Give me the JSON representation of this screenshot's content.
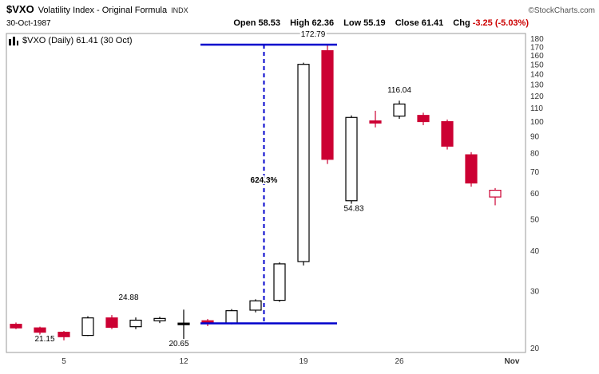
{
  "header": {
    "symbol": "$VXO",
    "title": "Volatility Index - Original Formula",
    "exchange": "INDX",
    "copyright": "©StockCharts.com",
    "date": "30-Oct-1987",
    "quote": {
      "open_label": "Open",
      "open_value": "58.53",
      "high_label": "High",
      "high_value": "62.36",
      "low_label": "Low",
      "low_value": "55.19",
      "close_label": "Close",
      "close_value": "61.41",
      "chg_label": "Chg",
      "chg_value": "-3.25 (-5.03%)"
    }
  },
  "legend": {
    "label": "$VXO (Daily) 61.41 (30 Oct)"
  },
  "colors": {
    "down": "#cc0033",
    "up_fill": "#ffffff",
    "neutral": "#000000",
    "measure_line": "#0000cc",
    "axis_text": "#333333",
    "negative_change": "#cc0000",
    "plot_border": "#9a9a9a"
  },
  "chart_data": {
    "type": "candlestick",
    "symbol": "$VXO",
    "period": "Daily",
    "y_scale": "log",
    "y_ticks": [
      180,
      170,
      160,
      150,
      140,
      130,
      120,
      110,
      100,
      90,
      80,
      70,
      60,
      50,
      40,
      30,
      20
    ],
    "y_range": [
      19.4,
      187
    ],
    "x_ticks": [
      {
        "label": "5",
        "slot": 2,
        "bold": false
      },
      {
        "label": "12",
        "slot": 7,
        "bold": false
      },
      {
        "label": "19",
        "slot": 12,
        "bold": false
      },
      {
        "label": "26",
        "slot": 16,
        "bold": false
      },
      {
        "label": "Nov",
        "slot": 20.7,
        "bold": true
      }
    ],
    "candles": [
      {
        "o": 23.7,
        "h": 24.0,
        "l": 22.9,
        "c": 23.1,
        "color": "red"
      },
      {
        "o": 23.1,
        "h": 23.3,
        "l": 22.0,
        "c": 22.4,
        "color": "red"
      },
      {
        "o": 22.4,
        "h": 22.6,
        "l": 21.15,
        "c": 21.7,
        "color": "red"
      },
      {
        "o": 21.9,
        "h": 25.1,
        "l": 21.8,
        "c": 24.8,
        "color": "white"
      },
      {
        "o": 24.8,
        "h": 25.3,
        "l": 22.9,
        "c": 23.2,
        "color": "red"
      },
      {
        "o": 23.3,
        "h": 24.88,
        "l": 22.9,
        "c": 24.4,
        "color": "white"
      },
      {
        "o": 24.3,
        "h": 25.0,
        "l": 23.9,
        "c": 24.7,
        "color": "white"
      },
      {
        "o": 23.9,
        "h": 26.3,
        "l": 20.65,
        "c": 23.8,
        "color": "black"
      },
      {
        "o": 24.3,
        "h": 24.6,
        "l": 23.4,
        "c": 23.8,
        "color": "red"
      },
      {
        "o": 23.9,
        "h": 26.4,
        "l": 23.7,
        "c": 26.1,
        "color": "white"
      },
      {
        "o": 26.2,
        "h": 28.3,
        "l": 25.8,
        "c": 28.0,
        "color": "white"
      },
      {
        "o": 28.1,
        "h": 36.8,
        "l": 27.8,
        "c": 36.4,
        "color": "white"
      },
      {
        "o": 37.0,
        "h": 152.0,
        "l": 36.0,
        "c": 150.2,
        "color": "white"
      },
      {
        "o": 165.5,
        "h": 172.79,
        "l": 74.0,
        "c": 76.5,
        "color": "red"
      },
      {
        "o": 57.0,
        "h": 104.5,
        "l": 54.83,
        "c": 103.0,
        "color": "white"
      },
      {
        "o": 100.5,
        "h": 108.0,
        "l": 96.0,
        "c": 99.0,
        "color": "red"
      },
      {
        "o": 104.0,
        "h": 116.04,
        "l": 102.0,
        "c": 113.3,
        "color": "white"
      },
      {
        "o": 104.5,
        "h": 106.5,
        "l": 97.5,
        "c": 100.0,
        "color": "red"
      },
      {
        "o": 100.0,
        "h": 101.5,
        "l": 82.0,
        "c": 84.0,
        "color": "red"
      },
      {
        "o": 79.0,
        "h": 80.5,
        "l": 63.0,
        "c": 64.66,
        "color": "red"
      },
      {
        "o": 58.53,
        "h": 62.36,
        "l": 55.19,
        "c": 61.41,
        "color": "hollow-red"
      }
    ],
    "annotations": {
      "labels": [
        {
          "text": "21.15",
          "slot": 1.2,
          "value": 21.0,
          "bold": false
        },
        {
          "text": "24.88",
          "slot": 4.7,
          "value": 28.2,
          "bold": false
        },
        {
          "text": "20.65",
          "slot": 6.8,
          "value": 20.3,
          "bold": false
        },
        {
          "text": "172.79",
          "slot": 12.4,
          "value": 183,
          "bold": false
        },
        {
          "text": "54.83",
          "slot": 14.1,
          "value": 53.0,
          "bold": false
        },
        {
          "text": "116.04",
          "slot": 16.0,
          "value": 123,
          "bold": false
        },
        {
          "text": "624.3%",
          "slot": 10.35,
          "value": 64.8,
          "bold": true
        }
      ],
      "measure": {
        "top_value": 172.79,
        "bottom_value": 23.86,
        "slot_from": 7.7,
        "slot_to": 13.4,
        "vline_slot": 10.35,
        "gain_label": "624.3%"
      }
    }
  }
}
